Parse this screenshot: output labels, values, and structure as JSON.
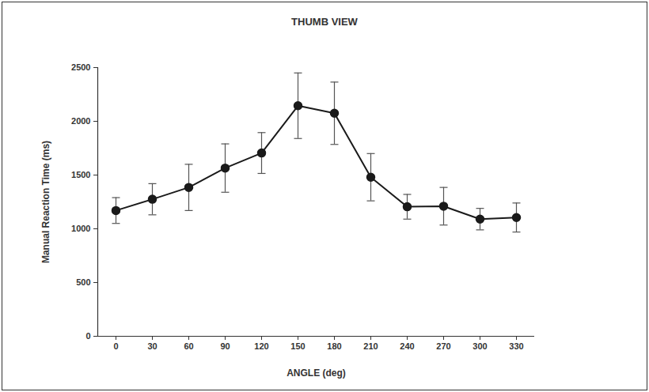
{
  "chart_data": {
    "type": "line",
    "title": "THUMB VIEW",
    "x_label": "ANGLE (deg)",
    "y_label": "Manual Reaction Time (ms)",
    "x": [
      0,
      30,
      60,
      90,
      120,
      150,
      180,
      210,
      240,
      270,
      300,
      330
    ],
    "values": [
      1170,
      1275,
      1385,
      1565,
      1705,
      2145,
      2075,
      1480,
      1205,
      1210,
      1090,
      1105
    ],
    "errors": [
      120,
      145,
      215,
      225,
      190,
      305,
      290,
      220,
      115,
      175,
      100,
      135
    ],
    "xlim": [
      -15,
      345
    ],
    "xticks": [
      0,
      30,
      60,
      90,
      120,
      150,
      180,
      210,
      240,
      270,
      300,
      330
    ],
    "ylim": [
      0,
      2500
    ],
    "yticks": [
      0,
      500,
      1000,
      1500,
      2000,
      2500
    ],
    "color": "#1a1a1a",
    "marker": "circle",
    "line_style": "solid",
    "grid": false
  }
}
